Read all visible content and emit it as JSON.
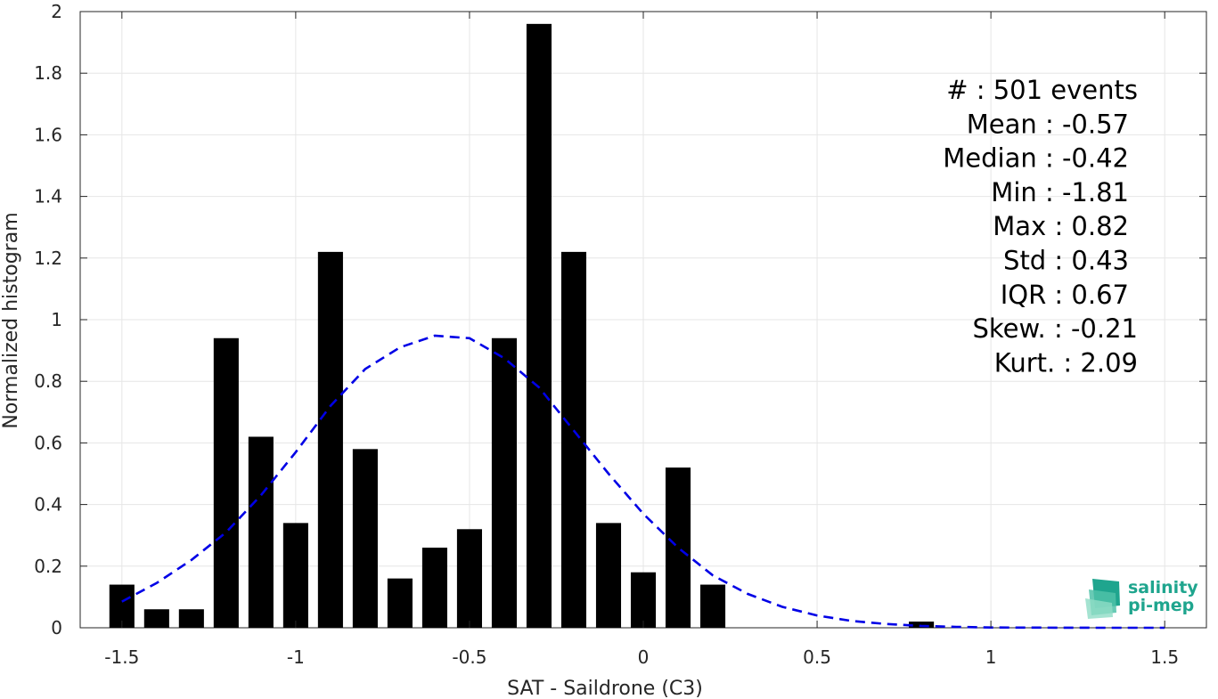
{
  "chart_data": {
    "type": "bar",
    "xlabel": "SAT - Saildrone (C3)",
    "ylabel": "Normalized histogram",
    "xlim": [
      -1.62,
      1.62
    ],
    "ylim": [
      0,
      2
    ],
    "grid": true,
    "xticks": [
      -1.5,
      -1,
      -0.5,
      0,
      0.5,
      1,
      1.5
    ],
    "xtick_labels": [
      "-1.5",
      "-1",
      "-0.5",
      "0",
      "0.5",
      "1",
      "1.5"
    ],
    "yticks": [
      0,
      0.2,
      0.4,
      0.6,
      0.8,
      1,
      1.2,
      1.4,
      1.6,
      1.8,
      2
    ],
    "ytick_labels": [
      "0",
      "0.2",
      "0.4",
      "0.6",
      "0.8",
      "1",
      "1.2",
      "1.4",
      "1.6",
      "1.8",
      "2"
    ],
    "bar_color": "#000000",
    "bar_width": 0.072,
    "bars": [
      {
        "x": -1.5,
        "y": 0.14
      },
      {
        "x": -1.4,
        "y": 0.06
      },
      {
        "x": -1.3,
        "y": 0.06
      },
      {
        "x": -1.2,
        "y": 0.94
      },
      {
        "x": -1.1,
        "y": 0.62
      },
      {
        "x": -1.0,
        "y": 0.34
      },
      {
        "x": -0.9,
        "y": 1.22
      },
      {
        "x": -0.8,
        "y": 0.58
      },
      {
        "x": -0.7,
        "y": 0.16
      },
      {
        "x": -0.6,
        "y": 0.26
      },
      {
        "x": -0.5,
        "y": 0.32
      },
      {
        "x": -0.4,
        "y": 0.94
      },
      {
        "x": -0.3,
        "y": 1.96
      },
      {
        "x": -0.2,
        "y": 1.22
      },
      {
        "x": -0.1,
        "y": 0.34
      },
      {
        "x": 0.0,
        "y": 0.18
      },
      {
        "x": 0.1,
        "y": 0.52
      },
      {
        "x": 0.2,
        "y": 0.14
      },
      {
        "x": 0.8,
        "y": 0.02
      }
    ],
    "fit_curve": {
      "color": "#0000e6",
      "style": "dashed",
      "points": [
        [
          -1.5,
          0.085
        ],
        [
          -1.4,
          0.145
        ],
        [
          -1.3,
          0.22
        ],
        [
          -1.2,
          0.31
        ],
        [
          -1.1,
          0.43
        ],
        [
          -1.0,
          0.57
        ],
        [
          -0.9,
          0.72
        ],
        [
          -0.8,
          0.84
        ],
        [
          -0.7,
          0.91
        ],
        [
          -0.6,
          0.948
        ],
        [
          -0.5,
          0.94
        ],
        [
          -0.4,
          0.875
        ],
        [
          -0.3,
          0.78
        ],
        [
          -0.2,
          0.64
        ],
        [
          -0.1,
          0.5
        ],
        [
          0.0,
          0.37
        ],
        [
          0.1,
          0.26
        ],
        [
          0.2,
          0.17
        ],
        [
          0.3,
          0.11
        ],
        [
          0.4,
          0.068
        ],
        [
          0.5,
          0.04
        ],
        [
          0.6,
          0.022
        ],
        [
          0.7,
          0.012
        ],
        [
          0.8,
          0.006
        ],
        [
          0.9,
          0.003
        ],
        [
          1.0,
          0.001
        ],
        [
          1.1,
          0.0005
        ],
        [
          1.2,
          0.0002
        ],
        [
          1.3,
          0.0001
        ],
        [
          1.4,
          0.0
        ],
        [
          1.5,
          0.0
        ]
      ]
    },
    "stats": [
      {
        "label": "#  : 501 events"
      },
      {
        "label": "Mean : -0.57"
      },
      {
        "label": "Median : -0.42"
      },
      {
        "label": "Min : -1.81"
      },
      {
        "label": "Max : 0.82"
      },
      {
        "label": "Std : 0.43"
      },
      {
        "label": "IQR : 0.67"
      },
      {
        "label": "Skew. : -0.21"
      },
      {
        "label": "Kurt. : 2.09"
      }
    ]
  },
  "logo": {
    "line1": "salinity",
    "line2": "pi-mep",
    "color": "#1fa58e"
  }
}
